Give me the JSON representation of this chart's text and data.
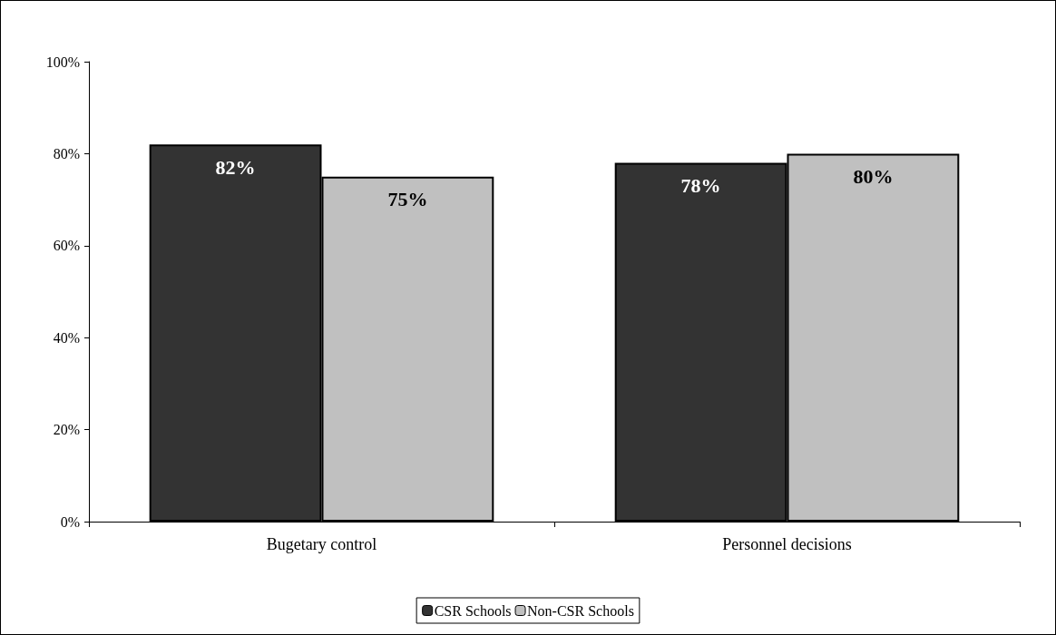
{
  "chart_data": {
    "type": "bar",
    "categories": [
      "Bugetary control",
      "Personnel decisions"
    ],
    "series": [
      {
        "name": "CSR Schools",
        "color": "#333333",
        "values": [
          82,
          78
        ],
        "value_labels": [
          "82%",
          "78%"
        ]
      },
      {
        "name": "Non-CSR Schools",
        "color": "#c0c0c0",
        "values": [
          75,
          80
        ],
        "value_labels": [
          "75%",
          "80%"
        ]
      }
    ],
    "ylim": [
      0,
      100
    ],
    "yticks": [
      {
        "value": 0,
        "label": "0%"
      },
      {
        "value": 20,
        "label": "20%"
      },
      {
        "value": 40,
        "label": "40%"
      },
      {
        "value": 60,
        "label": "60%"
      },
      {
        "value": 80,
        "label": "80%"
      },
      {
        "value": 100,
        "label": "100%"
      }
    ],
    "grid": false,
    "legend": "bottom"
  }
}
